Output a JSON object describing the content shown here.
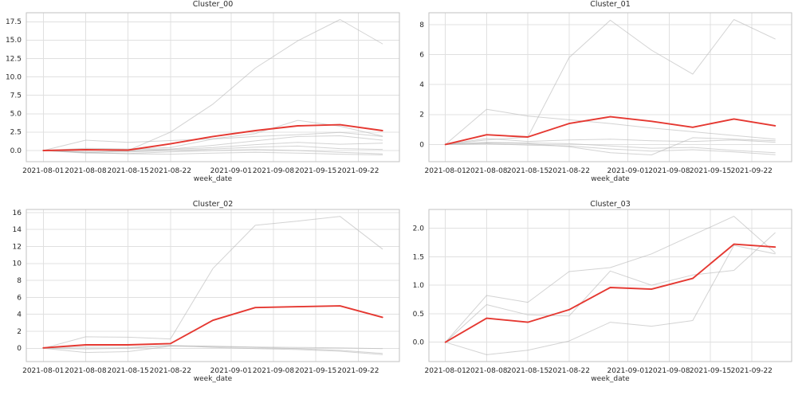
{
  "figure": {
    "background": "#ffffff"
  },
  "styles": {
    "centroid_color": "#e53831",
    "member_color": "#b5b5b5",
    "grid_color": "#e0e0e0",
    "spine_color": "#c2c2c2",
    "text_color": "#262626"
  },
  "chart_data": [
    {
      "type": "line",
      "title": "Cluster_00",
      "xlabel": "week_date",
      "x": [
        "2021-08-01",
        "2021-08-08",
        "2021-08-15",
        "2021-08-22",
        "2021-08-29",
        "2021-09-05",
        "2021-09-12",
        "2021-09-19",
        "2021-09-26"
      ],
      "x_days": [
        0,
        7,
        14,
        21,
        28,
        35,
        42,
        49,
        56
      ],
      "xticks": {
        "days": [
          0,
          7,
          14,
          21,
          31,
          38,
          45,
          52
        ],
        "labels": [
          "2021-08-01",
          "2021-08-08",
          "2021-08-15",
          "2021-08-22",
          "2021-09-01",
          "2021-09-08",
          "2021-09-15",
          "2021-09-22"
        ]
      },
      "xlim_days": [
        -2.8,
        58.8
      ],
      "ylim": [
        -1.52,
        18.72
      ],
      "yticks": [
        0,
        2.5,
        5,
        7.5,
        10,
        12.5,
        15,
        17.5
      ],
      "ytick_labels": [
        "0.0",
        "2.5",
        "5.0",
        "7.5",
        "10.0",
        "12.5",
        "15.0",
        "17.5"
      ],
      "grid": true,
      "legend": "none",
      "series": [
        {
          "name": "member-1",
          "role": "member",
          "values": [
            0,
            -0.3,
            0,
            2.5,
            6.3,
            11.2,
            14.9,
            17.8,
            14.5
          ]
        },
        {
          "name": "member-2",
          "role": "member",
          "values": [
            0,
            1.4,
            1.1,
            1.35,
            1.6,
            2.3,
            4.1,
            3.3,
            1.95
          ]
        },
        {
          "name": "member-3",
          "role": "member",
          "values": [
            0,
            0.3,
            0.2,
            0.4,
            1.55,
            1.9,
            2.15,
            2.45,
            1.9
          ]
        },
        {
          "name": "member-4",
          "role": "member",
          "values": [
            0,
            0.15,
            0.1,
            0.2,
            0.7,
            1.3,
            1.9,
            2.0,
            1.4
          ]
        },
        {
          "name": "member-5",
          "role": "member",
          "values": [
            0,
            0.1,
            -0.1,
            0.15,
            0.4,
            0.8,
            1.1,
            0.85,
            1.0
          ]
        },
        {
          "name": "member-6",
          "role": "member",
          "values": [
            0,
            -0.2,
            -0.2,
            0,
            0.2,
            0.45,
            0.6,
            0.25,
            0.15
          ]
        },
        {
          "name": "member-7",
          "role": "member",
          "values": [
            0,
            -0.35,
            -0.4,
            -0.2,
            0,
            0.15,
            0,
            -0.25,
            -0.45
          ]
        },
        {
          "name": "member-8",
          "role": "member",
          "values": [
            0,
            -0.25,
            -0.45,
            -0.5,
            -0.35,
            -0.25,
            -0.35,
            -0.5,
            -0.6
          ]
        },
        {
          "name": "centroid",
          "role": "centroid",
          "values": [
            0,
            0.1,
            0.05,
            0.9,
            1.9,
            2.7,
            3.35,
            3.5,
            2.7
          ]
        }
      ]
    },
    {
      "type": "line",
      "title": "Cluster_01",
      "xlabel": "week_date",
      "x": [
        "2021-08-01",
        "2021-08-08",
        "2021-08-15",
        "2021-08-22",
        "2021-08-29",
        "2021-09-05",
        "2021-09-12",
        "2021-09-19",
        "2021-09-26"
      ],
      "x_days": [
        0,
        7,
        14,
        21,
        28,
        35,
        42,
        49,
        56
      ],
      "xticks": {
        "days": [
          0,
          7,
          14,
          21,
          31,
          38,
          45,
          52
        ],
        "labels": [
          "2021-08-01",
          "2021-08-08",
          "2021-08-15",
          "2021-08-22",
          "2021-09-01",
          "2021-09-08",
          "2021-09-15",
          "2021-09-22"
        ]
      },
      "xlim_days": [
        -2.8,
        58.8
      ],
      "ylim": [
        -1.15,
        8.8
      ],
      "yticks": [
        0,
        2,
        4,
        6,
        8
      ],
      "ytick_labels": [
        "0",
        "2",
        "4",
        "6",
        "8"
      ],
      "grid": true,
      "legend": "none",
      "series": [
        {
          "name": "member-1",
          "role": "member",
          "values": [
            0,
            0.3,
            0.5,
            5.8,
            8.3,
            6.3,
            4.7,
            8.35,
            7.05
          ]
        },
        {
          "name": "member-2",
          "role": "member",
          "values": [
            0,
            2.35,
            1.9,
            1.65,
            1.4,
            1.1,
            0.85,
            0.6,
            0.35
          ]
        },
        {
          "name": "member-3",
          "role": "member",
          "values": [
            0,
            0.1,
            0.05,
            -0.15,
            -0.55,
            -0.7,
            0.45,
            0.35,
            0.25
          ]
        },
        {
          "name": "member-4",
          "role": "member",
          "values": [
            0,
            0.4,
            0.2,
            0.3,
            0.35,
            0.25,
            0.2,
            0.3,
            0.15
          ]
        },
        {
          "name": "member-5",
          "role": "member",
          "values": [
            0,
            0.15,
            0.1,
            0.05,
            -0.1,
            -0.25,
            -0.2,
            -0.4,
            -0.55
          ]
        },
        {
          "name": "member-6",
          "role": "member",
          "values": [
            0,
            0.05,
            -0.05,
            -0.1,
            -0.3,
            -0.45,
            -0.35,
            -0.5,
            -0.68
          ]
        },
        {
          "name": "centroid",
          "role": "centroid",
          "values": [
            0,
            0.65,
            0.5,
            1.4,
            1.85,
            1.55,
            1.15,
            1.7,
            1.25
          ]
        }
      ]
    },
    {
      "type": "line",
      "title": "Cluster_02",
      "xlabel": "week_date",
      "x": [
        "2021-08-01",
        "2021-08-08",
        "2021-08-15",
        "2021-08-22",
        "2021-08-29",
        "2021-09-05",
        "2021-09-12",
        "2021-09-19",
        "2021-09-26"
      ],
      "x_days": [
        0,
        7,
        14,
        21,
        28,
        35,
        42,
        49,
        56
      ],
      "xticks": {
        "days": [
          0,
          7,
          14,
          21,
          31,
          38,
          45,
          52
        ],
        "labels": [
          "2021-08-01",
          "2021-08-08",
          "2021-08-15",
          "2021-08-22",
          "2021-09-01",
          "2021-09-08",
          "2021-09-15",
          "2021-09-22"
        ]
      },
      "xlim_days": [
        -2.8,
        58.8
      ],
      "ylim": [
        -1.57,
        16.37
      ],
      "yticks": [
        0,
        2,
        4,
        6,
        8,
        10,
        12,
        14,
        16
      ],
      "ytick_labels": [
        "0",
        "2",
        "4",
        "6",
        "8",
        "10",
        "12",
        "14",
        "16"
      ],
      "grid": true,
      "legend": "none",
      "series": [
        {
          "name": "member-1",
          "role": "member",
          "values": [
            0,
            1.35,
            1.3,
            1.1,
            9.4,
            14.5,
            15.0,
            15.55,
            11.7
          ]
        },
        {
          "name": "member-2",
          "role": "member",
          "values": [
            0,
            -0.5,
            -0.4,
            0.25,
            0.2,
            0.1,
            -0.05,
            -0.25,
            -0.6
          ]
        },
        {
          "name": "member-3",
          "role": "member",
          "values": [
            0,
            -0.1,
            0,
            0.3,
            0.25,
            0.15,
            0.1,
            0.05,
            -0.05
          ]
        },
        {
          "name": "member-4",
          "role": "member",
          "values": [
            0.05,
            0.15,
            0.1,
            0.35,
            0.1,
            -0.05,
            -0.15,
            -0.35,
            -0.75
          ]
        },
        {
          "name": "centroid",
          "role": "centroid",
          "values": [
            0.05,
            0.4,
            0.4,
            0.55,
            3.3,
            4.8,
            4.9,
            5.0,
            3.65
          ]
        }
      ]
    },
    {
      "type": "line",
      "title": "Cluster_03",
      "xlabel": "week_date",
      "x": [
        "2021-08-01",
        "2021-08-08",
        "2021-08-15",
        "2021-08-22",
        "2021-08-29",
        "2021-09-05",
        "2021-09-12",
        "2021-09-19",
        "2021-09-26"
      ],
      "x_days": [
        0,
        7,
        14,
        21,
        28,
        35,
        42,
        49,
        56
      ],
      "xticks": {
        "days": [
          0,
          7,
          14,
          21,
          31,
          38,
          45,
          52
        ],
        "labels": [
          "2021-08-01",
          "2021-08-08",
          "2021-08-15",
          "2021-08-22",
          "2021-09-01",
          "2021-09-08",
          "2021-09-15",
          "2021-09-22"
        ]
      },
      "xlim_days": [
        -2.8,
        58.8
      ],
      "ylim": [
        -0.34,
        2.33
      ],
      "yticks": [
        0,
        0.5,
        1.0,
        1.5,
        2.0
      ],
      "ytick_labels": [
        "0.0",
        "0.5",
        "1.0",
        "1.5",
        "2.0"
      ],
      "grid": true,
      "legend": "none",
      "series": [
        {
          "name": "member-1",
          "role": "member",
          "values": [
            0,
            0.82,
            0.7,
            1.24,
            1.31,
            1.55,
            1.88,
            2.21,
            1.57
          ]
        },
        {
          "name": "member-2",
          "role": "member",
          "values": [
            0,
            0.66,
            0.48,
            0.46,
            1.25,
            1.0,
            1.18,
            1.26,
            1.92
          ]
        },
        {
          "name": "member-3",
          "role": "member",
          "values": [
            0,
            -0.22,
            -0.14,
            0.02,
            0.35,
            0.28,
            0.38,
            1.7,
            1.55
          ]
        },
        {
          "name": "centroid",
          "role": "centroid",
          "values": [
            0,
            0.42,
            0.35,
            0.57,
            0.96,
            0.93,
            1.12,
            1.72,
            1.67
          ]
        }
      ]
    }
  ]
}
